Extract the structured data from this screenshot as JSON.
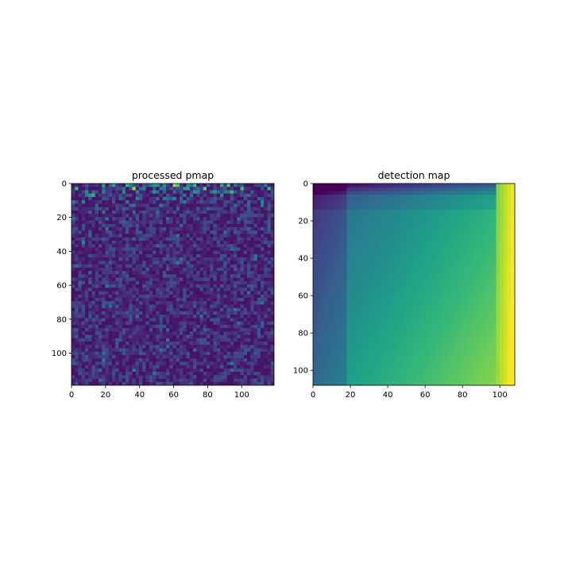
{
  "chart_data": [
    {
      "type": "heatmap",
      "title": "processed pmap",
      "xlabel": "",
      "ylabel": "",
      "xlim": [
        0,
        119
      ],
      "ylim": [
        119,
        0
      ],
      "x_ticks": [
        0,
        20,
        40,
        60,
        80,
        100
      ],
      "y_ticks": [
        0,
        20,
        40,
        60,
        80,
        100
      ],
      "colormap": "viridis",
      "grid": false,
      "pattern": "noisy speckle: low values overall, brighter speckles concentrated along the top edge and the left side"
    },
    {
      "type": "heatmap",
      "title": "detection map",
      "xlabel": "",
      "ylabel": "",
      "xlim": [
        0,
        108
      ],
      "ylim": [
        108,
        0
      ],
      "x_ticks": [
        0,
        20,
        40,
        60,
        80,
        100
      ],
      "y_ticks": [
        0,
        20,
        40,
        60,
        80,
        100
      ],
      "colormap": "viridis",
      "grid": false,
      "pattern": "smooth gradient: dark at top rows and left columns, increasing toward bottom-right, brightest (yellow) strip along right edge"
    }
  ]
}
